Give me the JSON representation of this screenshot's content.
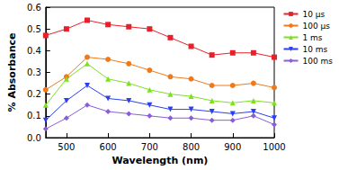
{
  "chart_data": {
    "type": "line",
    "x_label": "Wavelength (nm)",
    "y_label": "% Absorbance",
    "x": [
      450,
      500,
      550,
      600,
      650,
      700,
      750,
      800,
      850,
      900,
      950,
      1000
    ],
    "series": [
      {
        "name": "10 µs",
        "color": "#e8202a",
        "marker": "square",
        "values": [
          0.47,
          0.5,
          0.54,
          0.52,
          0.51,
          0.5,
          0.46,
          0.42,
          0.38,
          0.39,
          0.39,
          0.37
        ]
      },
      {
        "name": "100 µs",
        "color": "#f07a1a",
        "marker": "circle",
        "values": [
          0.22,
          0.28,
          0.37,
          0.36,
          0.34,
          0.31,
          0.28,
          0.27,
          0.24,
          0.24,
          0.25,
          0.23
        ]
      },
      {
        "name": "1 ms",
        "color": "#7ee020",
        "marker": "triangle",
        "values": [
          0.15,
          0.27,
          0.34,
          0.27,
          0.25,
          0.22,
          0.2,
          0.19,
          0.17,
          0.16,
          0.17,
          0.16
        ]
      },
      {
        "name": "10 ms",
        "color": "#2a3ff0",
        "marker": "down-triangle",
        "values": [
          0.08,
          0.17,
          0.24,
          0.18,
          0.17,
          0.15,
          0.13,
          0.13,
          0.12,
          0.11,
          0.12,
          0.09
        ]
      },
      {
        "name": "100 ms",
        "color": "#8a5cd8",
        "marker": "diamond",
        "values": [
          0.04,
          0.09,
          0.15,
          0.12,
          0.11,
          0.1,
          0.09,
          0.09,
          0.08,
          0.08,
          0.1,
          0.06
        ]
      }
    ],
    "xlim": [
      450,
      1000
    ],
    "xticks": [
      500,
      600,
      700,
      800,
      900,
      1000
    ],
    "ylim": [
      0,
      0.6
    ],
    "yticks": [
      {
        "value": 0,
        "label": "0.0"
      },
      {
        "value": 0.1,
        "label": "0.1"
      },
      {
        "value": 0.2,
        "label": "0.2"
      },
      {
        "value": 0.3,
        "label": "0.3"
      },
      {
        "value": 0.4,
        "label": "0.4"
      },
      {
        "value": 0.5,
        "label": "0.5"
      },
      {
        "value": 0.6,
        "label": "0.6"
      }
    ],
    "grid": false,
    "legend": "right"
  }
}
